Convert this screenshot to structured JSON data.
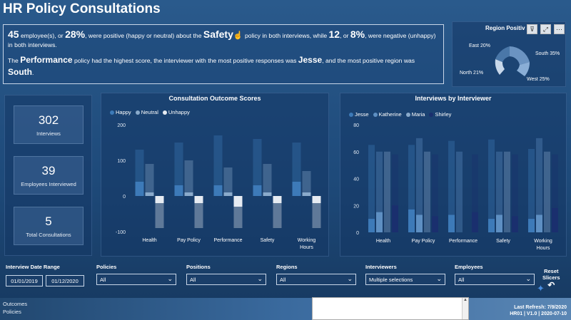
{
  "header": {
    "title": "HR Policy Consultations"
  },
  "summary": {
    "line1": {
      "count_pos": "45",
      "t1": " employee(s), or ",
      "pct_pos": "28%",
      "t2": ", were positive (happy or neutral) about the ",
      "policy": "Safety",
      "t3": " policy in both interviews, while ",
      "count_neg": "12",
      "t4": ", or ",
      "pct_neg": "8%",
      "t5": ", were negative (unhappy) in both interviews."
    },
    "line2": {
      "t1": "The ",
      "policy": "Performance",
      "t2": " policy had the highest score, the interviewer with the most positive responses was ",
      "interviewer": "Jesse",
      "t3": ", and the most positive region was ",
      "region": "South",
      "t4": "."
    }
  },
  "region_chart": {
    "title": "Region Positiv",
    "icons": [
      "filter-icon",
      "focus-icon",
      "more-icon"
    ],
    "chart_data": {
      "type": "pie",
      "categories": [
        "East",
        "South",
        "West",
        "North"
      ],
      "values": [
        20,
        35,
        25,
        21
      ],
      "labels": [
        "East 20%",
        "South 35%",
        "West 25%",
        "North 21%"
      ]
    }
  },
  "kpis": [
    {
      "value": "302",
      "label": "Interviews"
    },
    {
      "value": "39",
      "label": "Employees Interviewed"
    },
    {
      "value": "5",
      "label": "Total Consultations"
    }
  ],
  "outcome_chart": {
    "title": "Consultation Outcome Scores",
    "colors": {
      "Happy": "#3d7ab8",
      "Neutral": "#8aaacb",
      "Unhappy": "#e6ebf2"
    },
    "chart_data": {
      "type": "bar",
      "categories": [
        "Health",
        "Pay Policy",
        "Performance",
        "Safety",
        "Working\nHours"
      ],
      "series": [
        {
          "name": "Happy",
          "values": [
            40,
            30,
            30,
            30,
            40
          ],
          "back": [
            130,
            150,
            170,
            160,
            150
          ]
        },
        {
          "name": "Neutral",
          "values": [
            10,
            10,
            10,
            10,
            10
          ],
          "back": [
            90,
            100,
            80,
            90,
            70
          ]
        },
        {
          "name": "Unhappy",
          "values": [
            -20,
            -20,
            -30,
            -20,
            -20
          ],
          "back": [
            -90,
            -90,
            -90,
            -90,
            -90
          ]
        }
      ],
      "ylim": [
        -100,
        200
      ],
      "yticks": [
        "200",
        "100",
        "0",
        "-100"
      ]
    }
  },
  "interviewer_chart": {
    "title": "Interviews by Interviewer",
    "colors": {
      "Jesse": "#3d7ab8",
      "Katherine": "#5e8fc2",
      "Maria": "#8aaacb",
      "Shirley": "#1a2f6e"
    },
    "chart_data": {
      "type": "bar",
      "categories": [
        "Health",
        "Pay Policy",
        "Performance",
        "Safety",
        "Working\nHours"
      ],
      "series": [
        {
          "name": "Jesse",
          "values": [
            10,
            17,
            13,
            10,
            10
          ],
          "back": [
            65,
            65,
            68,
            69,
            62
          ]
        },
        {
          "name": "Katherine",
          "values": [
            15,
            13,
            0,
            13,
            13
          ],
          "back": [
            60,
            70,
            60,
            60,
            70
          ]
        },
        {
          "name": "Maria",
          "values": [
            0,
            0,
            0,
            0,
            0
          ],
          "back": [
            60,
            60,
            0,
            60,
            60
          ]
        },
        {
          "name": "Shirley",
          "values": [
            20,
            12,
            15,
            12,
            18
          ],
          "back": [
            58,
            58,
            58,
            58,
            58
          ]
        }
      ],
      "ylim": [
        0,
        80
      ],
      "yticks": [
        "80",
        "60",
        "40",
        "20",
        "0"
      ]
    }
  },
  "slicers": {
    "date_range": {
      "label": "Interview Date Range",
      "start": "01/01/2019",
      "end": "01/12/2020"
    },
    "policies": {
      "label": "Policies",
      "value": "All"
    },
    "positions": {
      "label": "Positions",
      "value": "All"
    },
    "regions": {
      "label": "Regions",
      "value": "All"
    },
    "interviewers": {
      "label": "Interviewers",
      "value": "Multiple selections"
    },
    "employees": {
      "label": "Employees",
      "value": "All"
    },
    "reset": {
      "label1": "Reset",
      "label2": "Slicers"
    }
  },
  "footer": {
    "pages": [
      "Outcomes",
      "Policies"
    ],
    "refresh": "Last Refresh: 7/9/2020",
    "version": "HR01 | V1.0 | 2020-07-10"
  }
}
